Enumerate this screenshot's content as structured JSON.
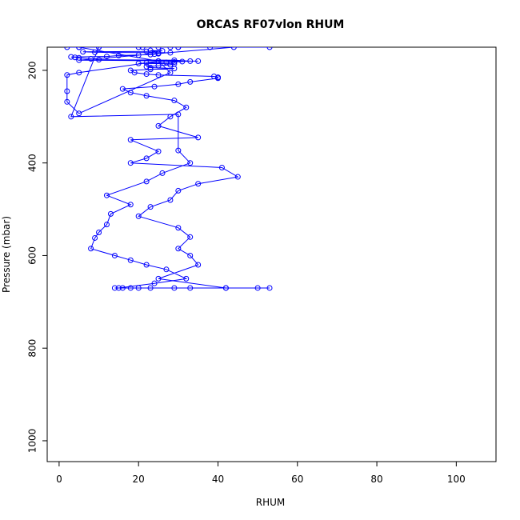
{
  "chart_data": {
    "type": "line",
    "title": "ORCAS RF07vlon RHUM",
    "xlabel": "RHUM",
    "ylabel": "Pressure (mbar)",
    "xlim": [
      -3,
      110
    ],
    "ylim": [
      1045,
      150
    ],
    "y_inverted": true,
    "xticks": [
      0,
      20,
      40,
      60,
      80,
      100
    ],
    "yticks": [
      200,
      400,
      600,
      800,
      1000
    ],
    "grid": false,
    "legend": "none",
    "series": [
      {
        "color": "#0000ff",
        "marker": "open-circle",
        "x": [
          2,
          10,
          20,
          30,
          21,
          38,
          25,
          30,
          53,
          44,
          5,
          35,
          25,
          5,
          2,
          2,
          2,
          5,
          28,
          25,
          5,
          5,
          28,
          10,
          3,
          30,
          30,
          33,
          26,
          22,
          12,
          18,
          13,
          12,
          10,
          9,
          8,
          14,
          18,
          22,
          27,
          32,
          24,
          15,
          14,
          16,
          20,
          18,
          23,
          29,
          33,
          42,
          50,
          53,
          42,
          25,
          35,
          33,
          30,
          33,
          30,
          20,
          23,
          28,
          30,
          35,
          45,
          41,
          18,
          22,
          25,
          18,
          35,
          25,
          28,
          32,
          29,
          22,
          18,
          16,
          24,
          30,
          33,
          40,
          40,
          39,
          25,
          22,
          19,
          18,
          23,
          29,
          23,
          22,
          25,
          28,
          29,
          20,
          22,
          27,
          29,
          31,
          33,
          29,
          10,
          8,
          5,
          4,
          3,
          12,
          15,
          20,
          23,
          24,
          25,
          25,
          28,
          9,
          6,
          22,
          26,
          23
        ],
        "y": [
          150,
          150,
          150,
          150,
          150,
          150,
          150,
          150,
          150,
          150,
          178,
          180,
          180,
          205,
          210,
          245,
          268,
          293,
          205,
          180,
          150,
          150,
          150,
          150,
          300,
          295,
          373,
          400,
          422,
          440,
          470,
          490,
          510,
          533,
          550,
          562,
          585,
          600,
          610,
          620,
          630,
          650,
          660,
          670,
          670,
          670,
          670,
          670,
          670,
          670,
          670,
          670,
          670,
          670,
          670,
          650,
          620,
          600,
          585,
          560,
          540,
          515,
          495,
          480,
          460,
          445,
          430,
          410,
          400,
          390,
          375,
          350,
          345,
          320,
          300,
          280,
          265,
          255,
          248,
          240,
          235,
          230,
          225,
          217,
          215,
          213,
          210,
          208,
          205,
          200,
          198,
          196,
          194,
          192,
          190,
          188,
          186,
          185,
          184,
          183,
          182,
          181,
          180,
          178,
          177,
          175,
          173,
          172,
          171,
          170,
          168,
          167,
          166,
          165,
          164,
          163,
          162,
          161,
          160,
          159,
          158,
          157
        ]
      }
    ]
  }
}
